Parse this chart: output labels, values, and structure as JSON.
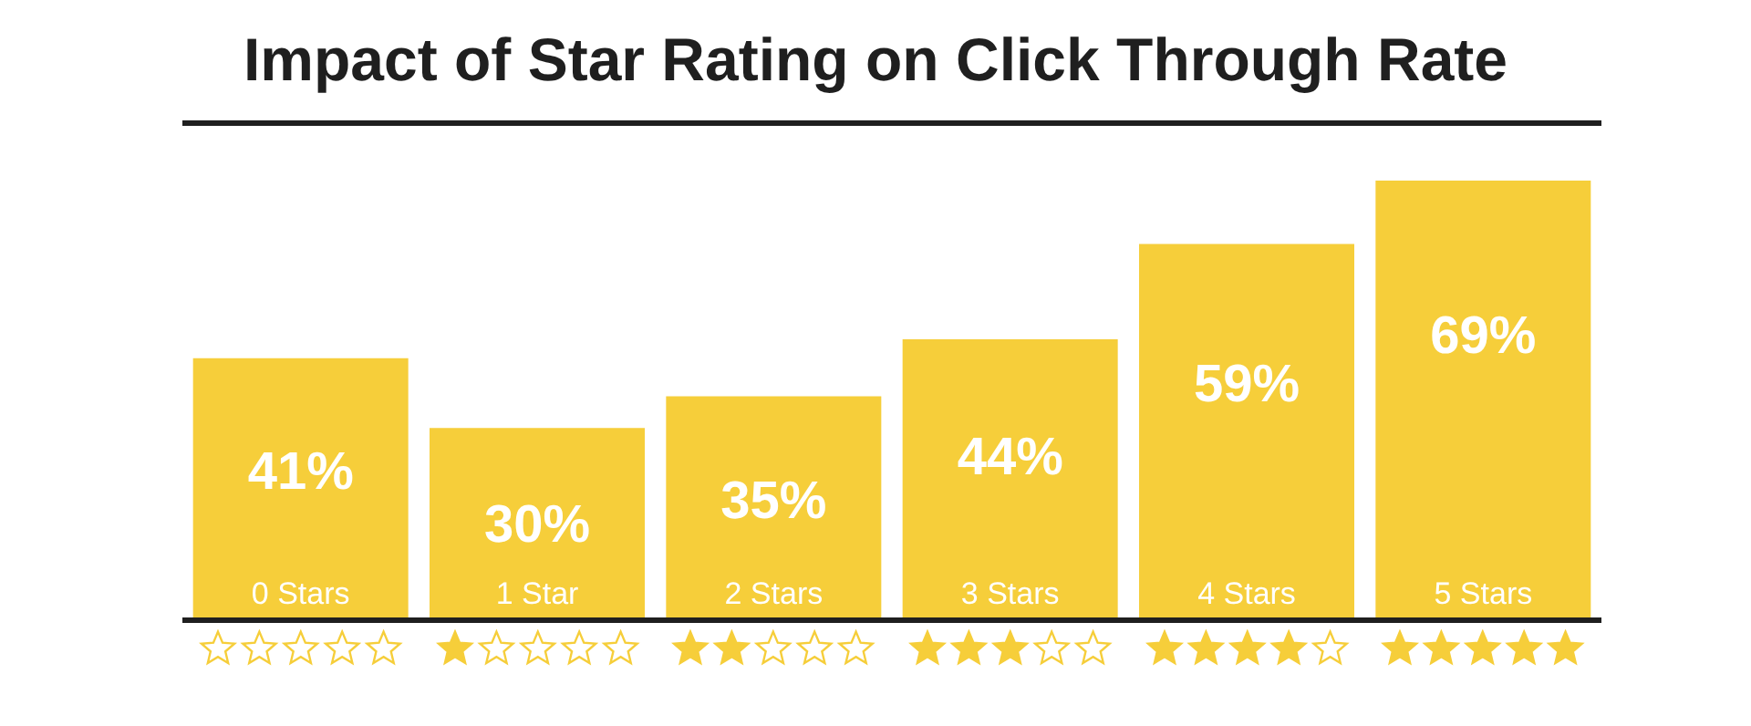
{
  "chart_data": {
    "type": "bar",
    "title": "Impact of Star Rating on Click Through Rate",
    "categories": [
      "0 Stars",
      "1 Star",
      "2 Stars",
      "3 Stars",
      "4 Stars",
      "5 Stars"
    ],
    "values": [
      41,
      30,
      35,
      44,
      59,
      69
    ],
    "value_labels": [
      "41%",
      "30%",
      "35%",
      "44%",
      "59%",
      "69%"
    ],
    "color": "#f6ce3a",
    "ylim": [
      0,
      69
    ]
  }
}
